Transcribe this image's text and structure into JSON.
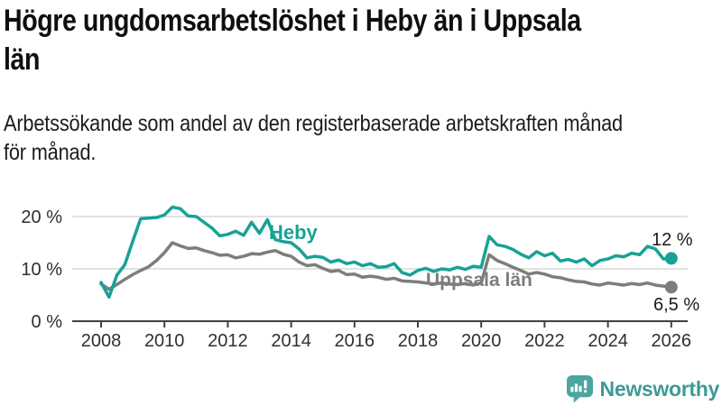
{
  "header": {
    "title_lines": [
      "Högre ungdomsarbetslöshet i Heby än i Uppsala",
      "län"
    ],
    "subtitle_lines": [
      "Arbetssökande som andel av den registerbaserade arbetskraften månad",
      "för månad."
    ]
  },
  "chart_data": {
    "type": "line",
    "title": "Högre ungdomsarbetslöshet i Heby än i Uppsala län",
    "subtitle": "Arbetssökande som andel av den registerbaserade arbetskraften månad för månad.",
    "x_start": 2008,
    "x_step": 0.25,
    "x_ticks": [
      2008,
      2010,
      2012,
      2014,
      2016,
      2018,
      2020,
      2022,
      2024,
      2026
    ],
    "y_ticks": [
      {
        "value": 0,
        "label": "0 %"
      },
      {
        "value": 10,
        "label": "10 %"
      },
      {
        "value": 20,
        "label": "20 %"
      }
    ],
    "ylim": [
      0,
      23
    ],
    "xlim": [
      2008,
      2026
    ],
    "grid": "horizontal",
    "legend_position": "inline-labels",
    "series": [
      {
        "name": "Heby",
        "color": "#17a296",
        "end_label": "12 %",
        "end_value": 12.0,
        "values": [
          7.4,
          4.6,
          8.8,
          10.8,
          15.3,
          19.6,
          19.7,
          19.8,
          20.3,
          21.8,
          21.5,
          20.1,
          20.0,
          18.9,
          17.8,
          16.3,
          16.6,
          17.2,
          16.4,
          18.9,
          16.8,
          19.4,
          15.6,
          15.2,
          15.0,
          13.8,
          12.1,
          12.4,
          12.2,
          11.3,
          11.7,
          11.0,
          11.3,
          10.6,
          11.0,
          10.3,
          10.4,
          11.0,
          9.3,
          8.8,
          9.7,
          10.1,
          9.5,
          10.0,
          9.8,
          10.3,
          9.9,
          10.5,
          10.3,
          16.2,
          14.6,
          14.3,
          13.7,
          12.8,
          12.1,
          13.3,
          12.5,
          13.0,
          11.5,
          11.8,
          11.3,
          11.9,
          10.6,
          11.6,
          11.9,
          12.5,
          12.3,
          13.0,
          12.7,
          14.3,
          13.8,
          11.9,
          12.0
        ]
      },
      {
        "name": "Uppsala län",
        "color": "#7d7d7d",
        "end_label": "6,5 %",
        "end_value": 6.5,
        "values": [
          7.1,
          6.1,
          7.0,
          8.0,
          8.9,
          9.7,
          10.4,
          11.6,
          13.1,
          15.0,
          14.4,
          13.9,
          14.0,
          13.5,
          13.1,
          12.6,
          12.7,
          12.1,
          12.4,
          12.9,
          12.8,
          13.2,
          13.5,
          12.8,
          12.4,
          11.3,
          10.6,
          10.8,
          10.1,
          9.5,
          9.7,
          8.9,
          9.0,
          8.4,
          8.6,
          8.4,
          8.0,
          8.2,
          7.7,
          7.6,
          7.5,
          7.3,
          7.1,
          7.3,
          7.1,
          7.0,
          7.2,
          6.9,
          7.3,
          12.7,
          11.6,
          11.0,
          10.3,
          9.7,
          9.0,
          9.3,
          9.0,
          8.5,
          8.3,
          7.9,
          7.6,
          7.5,
          7.1,
          6.9,
          7.3,
          7.1,
          6.9,
          7.2,
          7.0,
          7.3,
          6.9,
          6.7,
          6.5
        ]
      }
    ],
    "colors": {
      "gridline": "#d8d8d8",
      "axis": "#414141",
      "tick_text": "#2f2f2f",
      "value_label_text": "#1a1a1a"
    }
  },
  "branding": {
    "logo_text": "Newsworthy",
    "logo_icon": "newsworthy-chart-bubble-icon",
    "wordmark_color": "#3d9a96",
    "icon_color": "#4ba6a1"
  }
}
